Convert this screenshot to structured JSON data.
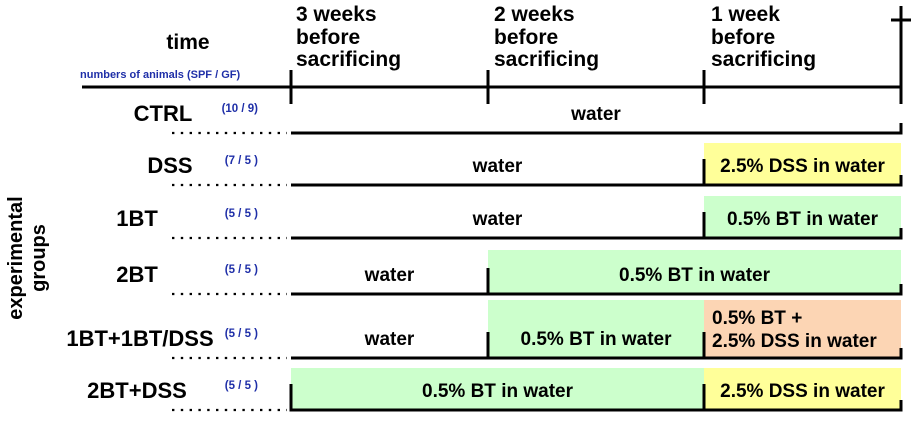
{
  "header": {
    "time_label": "time",
    "animals_label": "numbers of animals (SPF / GF)",
    "periods": [
      {
        "line1": "3 weeks",
        "line2": "before",
        "line3": "sacrificing"
      },
      {
        "line1": "2 weeks",
        "line2": "before",
        "line3": "sacrificing"
      },
      {
        "line1": "1 week",
        "line2": "before",
        "line3": "sacrificing"
      }
    ],
    "end_marker": "†"
  },
  "side_label": {
    "line1": "experimental",
    "line2": "groups"
  },
  "groups": [
    {
      "name": "CTRL",
      "count": "(10 / 9)",
      "segments": [
        {
          "label": "water",
          "line2": "",
          "start": 0,
          "end": 3,
          "bg": ""
        }
      ]
    },
    {
      "name": "DSS",
      "count": "(7 / 5 )",
      "segments": [
        {
          "label": "water",
          "line2": "",
          "start": 0,
          "end": 2,
          "bg": ""
        },
        {
          "label": "2.5% DSS in water",
          "line2": "",
          "start": 2,
          "end": 3,
          "bg": "yellow"
        }
      ]
    },
    {
      "name": "1BT",
      "count": "(5 / 5 )",
      "segments": [
        {
          "label": "water",
          "line2": "",
          "start": 0,
          "end": 2,
          "bg": ""
        },
        {
          "label": "0.5% BT in water",
          "line2": "",
          "start": 2,
          "end": 3,
          "bg": "green"
        }
      ]
    },
    {
      "name": "2BT",
      "count": "(5 / 5 )",
      "segments": [
        {
          "label": "water",
          "line2": "",
          "start": 0,
          "end": 1,
          "bg": ""
        },
        {
          "label": "0.5% BT in water",
          "line2": "",
          "start": 1,
          "end": 3,
          "bg": "green"
        }
      ]
    },
    {
      "name": "1BT+1BT/DSS",
      "count": "(5 / 5 )",
      "segments": [
        {
          "label": "water",
          "line2": "",
          "start": 0,
          "end": 1,
          "bg": ""
        },
        {
          "label": "0.5% BT in water",
          "line2": "",
          "start": 1,
          "end": 2,
          "bg": "green"
        },
        {
          "label": "0.5% BT +",
          "line2": "2.5% DSS in water",
          "start": 2,
          "end": 3,
          "bg": "orange"
        }
      ]
    },
    {
      "name": "2BT+DSS",
      "count": "(5 / 5 )",
      "segments": [
        {
          "label": "0.5% BT in water",
          "line2": "",
          "start": 0,
          "end": 2,
          "bg": "green"
        },
        {
          "label": "2.5% DSS in water",
          "line2": "",
          "start": 2,
          "end": 3,
          "bg": "yellow"
        }
      ]
    }
  ],
  "colors": {
    "yellow": "#ffff99",
    "green": "#ccffcc",
    "orange": "#fcd5b4",
    "count_text": "#1f2fa8",
    "line": "#000000"
  }
}
